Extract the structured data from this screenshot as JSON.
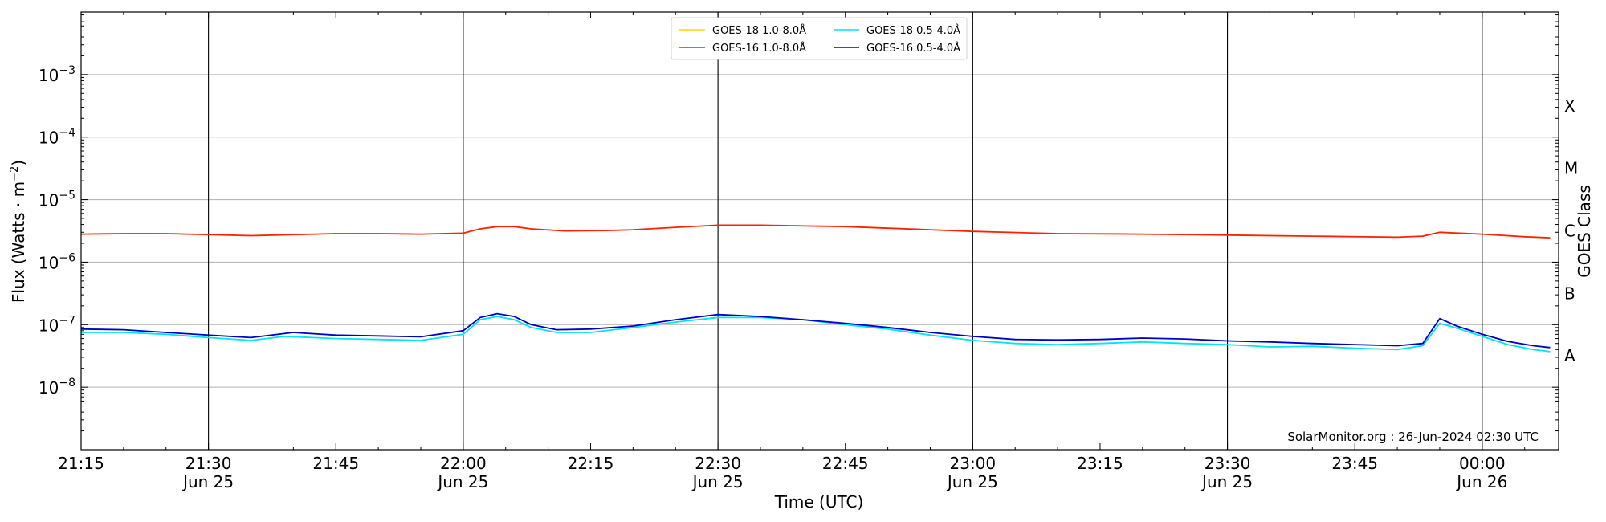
{
  "chart_data": {
    "type": "line",
    "xlabel": "Time (UTC)",
    "ylabel": "Flux (Watts · m^-2)",
    "ylabel_parts": {
      "base": "Flux (Watts · m",
      "sup": "−2",
      "close": ")"
    },
    "y2label": "GOES Class",
    "yscale": "log",
    "xlim": [
      "2024-06-25 21:15",
      "2024-06-26 00:09"
    ],
    "ylim": [
      1e-09,
      0.01
    ],
    "y_ticks": [
      {
        "value": 0.001,
        "base": "10",
        "exp": "−3"
      },
      {
        "value": 0.0001,
        "base": "10",
        "exp": "−4"
      },
      {
        "value": 1e-05,
        "base": "10",
        "exp": "−5"
      },
      {
        "value": 1e-06,
        "base": "10",
        "exp": "−6"
      },
      {
        "value": 1e-07,
        "base": "10",
        "exp": "−7"
      },
      {
        "value": 1e-08,
        "base": "10",
        "exp": "−8"
      }
    ],
    "x_ticks": [
      {
        "time": "2024-06-25 21:15",
        "label": "21:15",
        "sub": ""
      },
      {
        "time": "2024-06-25 21:30",
        "label": "21:30",
        "sub": "Jun 25"
      },
      {
        "time": "2024-06-25 21:45",
        "label": "21:45",
        "sub": ""
      },
      {
        "time": "2024-06-25 22:00",
        "label": "22:00",
        "sub": "Jun 25"
      },
      {
        "time": "2024-06-25 22:15",
        "label": "22:15",
        "sub": ""
      },
      {
        "time": "2024-06-25 22:30",
        "label": "22:30",
        "sub": "Jun 25"
      },
      {
        "time": "2024-06-25 22:45",
        "label": "22:45",
        "sub": ""
      },
      {
        "time": "2024-06-25 23:00",
        "label": "23:00",
        "sub": "Jun 25"
      },
      {
        "time": "2024-06-25 23:15",
        "label": "23:15",
        "sub": ""
      },
      {
        "time": "2024-06-25 23:30",
        "label": "23:30",
        "sub": "Jun 25"
      },
      {
        "time": "2024-06-25 23:45",
        "label": "23:45",
        "sub": ""
      },
      {
        "time": "2024-06-26 00:00",
        "label": "00:00",
        "sub": "Jun 26"
      }
    ],
    "vlines": [
      "2024-06-25 21:30",
      "2024-06-25 22:00",
      "2024-06-25 22:30",
      "2024-06-25 23:00",
      "2024-06-25 23:30",
      "2024-06-26 00:00"
    ],
    "hgrid": [
      0.001,
      0.0001,
      1e-05,
      1e-06,
      1e-07,
      1e-08
    ],
    "classes": [
      {
        "label": "X",
        "value": 0.000316
      },
      {
        "label": "M",
        "value": 3.16e-05
      },
      {
        "label": "C",
        "value": 3.16e-06
      },
      {
        "label": "B",
        "value": 3.16e-07
      },
      {
        "label": "A",
        "value": 3.16e-08
      }
    ],
    "legend_position": "top-center",
    "annotation": "SolarMonitor.org : 26-Jun-2024 02:30 UTC",
    "series": [
      {
        "name": "GOES-18 1.0-8.0Å",
        "color": "#ffd700",
        "points": []
      },
      {
        "name": "GOES-16 1.0-8.0Å",
        "color": "#ff2200",
        "points": [
          [
            "2024-06-25 21:15",
            2.8e-06
          ],
          [
            "2024-06-25 21:20",
            2.85e-06
          ],
          [
            "2024-06-25 21:25",
            2.85e-06
          ],
          [
            "2024-06-25 21:30",
            2.75e-06
          ],
          [
            "2024-06-25 21:35",
            2.65e-06
          ],
          [
            "2024-06-25 21:40",
            2.75e-06
          ],
          [
            "2024-06-25 21:45",
            2.85e-06
          ],
          [
            "2024-06-25 21:50",
            2.85e-06
          ],
          [
            "2024-06-25 21:55",
            2.8e-06
          ],
          [
            "2024-06-25 22:00",
            2.9e-06
          ],
          [
            "2024-06-25 22:02",
            3.4e-06
          ],
          [
            "2024-06-25 22:04",
            3.7e-06
          ],
          [
            "2024-06-25 22:06",
            3.7e-06
          ],
          [
            "2024-06-25 22:08",
            3.4e-06
          ],
          [
            "2024-06-25 22:12",
            3.15e-06
          ],
          [
            "2024-06-25 22:17",
            3.2e-06
          ],
          [
            "2024-06-25 22:20",
            3.3e-06
          ],
          [
            "2024-06-25 22:25",
            3.6e-06
          ],
          [
            "2024-06-25 22:30",
            3.9e-06
          ],
          [
            "2024-06-25 22:35",
            3.9e-06
          ],
          [
            "2024-06-25 22:45",
            3.7e-06
          ],
          [
            "2024-06-25 22:55",
            3.3e-06
          ],
          [
            "2024-06-25 23:00",
            3.1e-06
          ],
          [
            "2024-06-25 23:10",
            2.85e-06
          ],
          [
            "2024-06-25 23:20",
            2.8e-06
          ],
          [
            "2024-06-25 23:30",
            2.7e-06
          ],
          [
            "2024-06-25 23:40",
            2.6e-06
          ],
          [
            "2024-06-25 23:50",
            2.5e-06
          ],
          [
            "2024-06-25 23:53",
            2.6e-06
          ],
          [
            "2024-06-25 23:55",
            3e-06
          ],
          [
            "2024-06-26 00:00",
            2.8e-06
          ],
          [
            "2024-06-26 00:05",
            2.55e-06
          ],
          [
            "2024-06-26 00:08",
            2.45e-06
          ]
        ]
      },
      {
        "name": "GOES-18 0.5-4.0Å",
        "color": "#00e5ee",
        "points": [
          [
            "2024-06-25 21:15",
            7.5e-08
          ],
          [
            "2024-06-25 21:20",
            7.5e-08
          ],
          [
            "2024-06-25 21:25",
            7e-08
          ],
          [
            "2024-06-25 21:30",
            6.2e-08
          ],
          [
            "2024-06-25 21:35",
            5.6e-08
          ],
          [
            "2024-06-25 21:39",
            6.5e-08
          ],
          [
            "2024-06-25 21:45",
            6e-08
          ],
          [
            "2024-06-25 21:50",
            5.8e-08
          ],
          [
            "2024-06-25 21:55",
            5.6e-08
          ],
          [
            "2024-06-25 22:00",
            7e-08
          ],
          [
            "2024-06-25 22:02",
            1.2e-07
          ],
          [
            "2024-06-25 22:04",
            1.35e-07
          ],
          [
            "2024-06-25 22:06",
            1.2e-07
          ],
          [
            "2024-06-25 22:08",
            9e-08
          ],
          [
            "2024-06-25 22:11",
            7.5e-08
          ],
          [
            "2024-06-25 22:15",
            7.5e-08
          ],
          [
            "2024-06-25 22:20",
            9e-08
          ],
          [
            "2024-06-25 22:25",
            1.1e-07
          ],
          [
            "2024-06-25 22:30",
            1.3e-07
          ],
          [
            "2024-06-25 22:35",
            1.3e-07
          ],
          [
            "2024-06-25 22:40",
            1.2e-07
          ],
          [
            "2024-06-25 22:45",
            1e-07
          ],
          [
            "2024-06-25 22:50",
            8.5e-08
          ],
          [
            "2024-06-25 22:55",
            6.8e-08
          ],
          [
            "2024-06-25 23:00",
            5.6e-08
          ],
          [
            "2024-06-25 23:05",
            5e-08
          ],
          [
            "2024-06-25 23:10",
            4.8e-08
          ],
          [
            "2024-06-25 23:15",
            5e-08
          ],
          [
            "2024-06-25 23:20",
            5.3e-08
          ],
          [
            "2024-06-25 23:25",
            5e-08
          ],
          [
            "2024-06-25 23:30",
            4.8e-08
          ],
          [
            "2024-06-25 23:35",
            4.4e-08
          ],
          [
            "2024-06-25 23:40",
            4.5e-08
          ],
          [
            "2024-06-25 23:45",
            4.2e-08
          ],
          [
            "2024-06-25 23:50",
            4e-08
          ],
          [
            "2024-06-25 23:53",
            4.6e-08
          ],
          [
            "2024-06-25 23:55",
            1.05e-07
          ],
          [
            "2024-06-25 23:57",
            8.8e-08
          ],
          [
            "2024-06-26 00:00",
            6.5e-08
          ],
          [
            "2024-06-26 00:03",
            4.8e-08
          ],
          [
            "2024-06-26 00:06",
            4e-08
          ],
          [
            "2024-06-26 00:08",
            3.7e-08
          ]
        ]
      },
      {
        "name": "GOES-16 0.5-4.0Å",
        "color": "#0000cc",
        "points": [
          [
            "2024-06-25 21:15",
            8.5e-08
          ],
          [
            "2024-06-25 21:20",
            8.3e-08
          ],
          [
            "2024-06-25 21:25",
            7.5e-08
          ],
          [
            "2024-06-25 21:30",
            6.8e-08
          ],
          [
            "2024-06-25 21:35",
            6.2e-08
          ],
          [
            "2024-06-25 21:40",
            7.5e-08
          ],
          [
            "2024-06-25 21:45",
            6.8e-08
          ],
          [
            "2024-06-25 21:50",
            6.6e-08
          ],
          [
            "2024-06-25 21:55",
            6.4e-08
          ],
          [
            "2024-06-25 22:00",
            8e-08
          ],
          [
            "2024-06-25 22:02",
            1.3e-07
          ],
          [
            "2024-06-25 22:04",
            1.5e-07
          ],
          [
            "2024-06-25 22:06",
            1.35e-07
          ],
          [
            "2024-06-25 22:08",
            1e-07
          ],
          [
            "2024-06-25 22:11",
            8.3e-08
          ],
          [
            "2024-06-25 22:15",
            8.5e-08
          ],
          [
            "2024-06-25 22:20",
            9.5e-08
          ],
          [
            "2024-06-25 22:25",
            1.2e-07
          ],
          [
            "2024-06-25 22:30",
            1.45e-07
          ],
          [
            "2024-06-25 22:35",
            1.35e-07
          ],
          [
            "2024-06-25 22:40",
            1.2e-07
          ],
          [
            "2024-06-25 22:45",
            1.05e-07
          ],
          [
            "2024-06-25 22:50",
            9e-08
          ],
          [
            "2024-06-25 22:55",
            7.5e-08
          ],
          [
            "2024-06-25 23:00",
            6.5e-08
          ],
          [
            "2024-06-25 23:05",
            5.8e-08
          ],
          [
            "2024-06-25 23:10",
            5.7e-08
          ],
          [
            "2024-06-25 23:15",
            5.8e-08
          ],
          [
            "2024-06-25 23:20",
            6.1e-08
          ],
          [
            "2024-06-25 23:25",
            5.9e-08
          ],
          [
            "2024-06-25 23:30",
            5.5e-08
          ],
          [
            "2024-06-25 23:35",
            5.3e-08
          ],
          [
            "2024-06-25 23:40",
            5e-08
          ],
          [
            "2024-06-25 23:45",
            4.8e-08
          ],
          [
            "2024-06-25 23:50",
            4.6e-08
          ],
          [
            "2024-06-25 23:53",
            5e-08
          ],
          [
            "2024-06-25 23:55",
            1.25e-07
          ],
          [
            "2024-06-25 23:57",
            9.5e-08
          ],
          [
            "2024-06-26 00:00",
            7e-08
          ],
          [
            "2024-06-26 00:03",
            5.4e-08
          ],
          [
            "2024-06-26 00:06",
            4.6e-08
          ],
          [
            "2024-06-26 00:08",
            4.3e-08
          ]
        ]
      }
    ]
  }
}
